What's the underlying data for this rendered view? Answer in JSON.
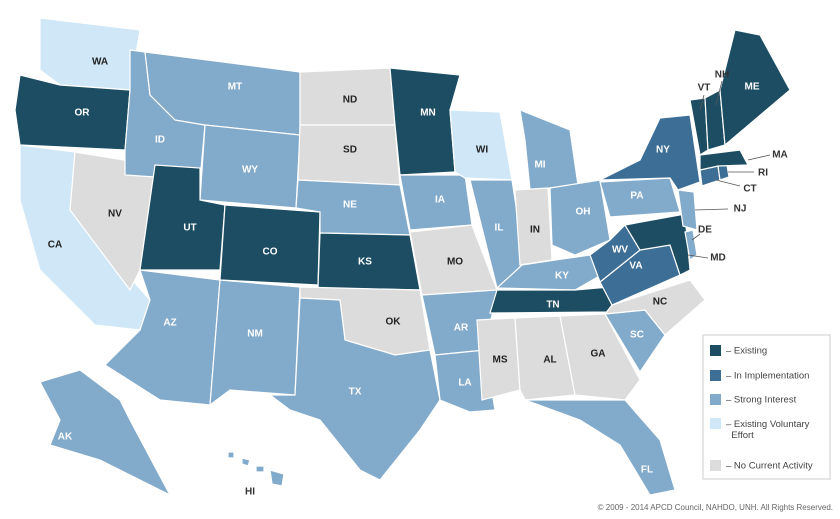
{
  "legend": [
    {
      "label": "– Existing",
      "color": "#1c4d63",
      "label_color": "#ffffff",
      "states": [
        "ME",
        "NH",
        "VT",
        "MA",
        "OR",
        "UT",
        "CO",
        "KS",
        "MN",
        "TN",
        "MD"
      ]
    },
    {
      "label": "– In Implementation",
      "color": "#3d6e96",
      "label_color": "#ffffff",
      "states": [
        "NY",
        "CT",
        "RI",
        "WV",
        "VA"
      ]
    },
    {
      "label": "– Strong Interest",
      "color": "#82aacb",
      "label_color": "#ffffff",
      "states": [
        "MT",
        "ID",
        "WY",
        "NE",
        "IA",
        "MI",
        "OH",
        "PA",
        "NJ",
        "DE",
        "IL",
        "KY",
        "AZ",
        "NM",
        "TX",
        "AR",
        "LA",
        "SC",
        "FL",
        "AK",
        "HI"
      ]
    },
    {
      "label": "– Existing Voluntary Effort",
      "color": "#cfe7f7",
      "label_color": "#222222",
      "states": [
        "WA",
        "CA",
        "WI"
      ]
    },
    {
      "label": "– No Current Activity",
      "color": "#dcdcdc",
      "label_color": "#222222",
      "states": [
        "NV",
        "ND",
        "SD",
        "MO",
        "IN",
        "OK",
        "MS",
        "AL",
        "GA",
        "NC"
      ]
    }
  ],
  "copyright": "© 2009 - 2014 APCD Council, NAHDO, UNH. All Rights Reserved."
}
